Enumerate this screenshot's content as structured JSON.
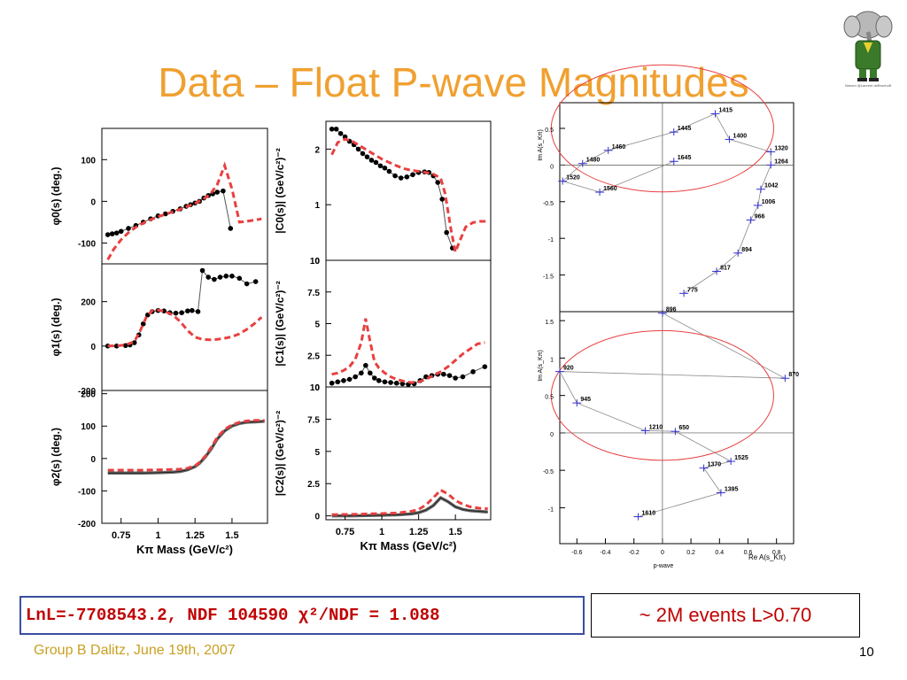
{
  "slide": {
    "title": "Data – Float P-wave Magnitudes",
    "fit_text": "LnL=-7708543.2, NDF 104590 χ²/NDF = 1.088",
    "events_text": "~ 2M events L>0.70",
    "footer": "Group B Dalitz, June 19th, 2007",
    "page_number": "10",
    "logo_caption": "Nimom @Laurent deBrunhoff",
    "colors": {
      "title": "#f0a030",
      "model": "#e84040",
      "data": "#000000",
      "argand_marker": "#3030d0",
      "footer": "#c8a020",
      "box_border": "#3a4fa0",
      "emphasis": "#c00000"
    }
  },
  "chart_data": [
    {
      "type": "scatter",
      "panel": "phi0",
      "ylabel": "φ0(s)  (deg.)",
      "xlim": [
        0.62,
        1.74
      ],
      "ylim": [
        -150,
        175
      ],
      "yticks": [
        -100,
        0,
        100
      ],
      "series": [
        {
          "style": "data",
          "x": [
            0.66,
            0.69,
            0.72,
            0.75,
            0.8,
            0.85,
            0.9,
            0.95,
            1.0,
            1.05,
            1.1,
            1.15,
            1.19,
            1.22,
            1.25,
            1.28,
            1.31,
            1.34,
            1.37,
            1.4,
            1.44,
            1.49
          ],
          "y": [
            -80,
            -78,
            -76,
            -72,
            -65,
            -58,
            -50,
            -42,
            -35,
            -30,
            -24,
            -18,
            -12,
            -8,
            -4,
            0,
            8,
            14,
            18,
            22,
            25,
            -65
          ]
        },
        {
          "style": "model",
          "x": [
            0.66,
            0.7,
            0.75,
            0.8,
            0.85,
            0.9,
            0.95,
            1.0,
            1.05,
            1.1,
            1.15,
            1.2,
            1.25,
            1.3,
            1.35,
            1.4,
            1.45,
            1.5,
            1.55,
            1.6,
            1.65,
            1.7
          ],
          "y": [
            -140,
            -115,
            -92,
            -75,
            -62,
            -52,
            -44,
            -37,
            -31,
            -25,
            -19,
            -12,
            -5,
            4,
            16,
            40,
            86,
            30,
            -50,
            -48,
            -45,
            -42
          ]
        }
      ]
    },
    {
      "type": "scatter",
      "panel": "C0",
      "ylabel": "|C0(s)|  (GeV/c²)⁻²",
      "xlim": [
        0.62,
        1.74
      ],
      "ylim": [
        0,
        2.5
      ],
      "yticks": [
        0,
        1,
        2
      ],
      "series": [
        {
          "style": "data",
          "x": [
            0.66,
            0.69,
            0.72,
            0.75,
            0.78,
            0.81,
            0.84,
            0.87,
            0.9,
            0.93,
            0.96,
            0.99,
            1.02,
            1.05,
            1.09,
            1.13,
            1.17,
            1.21,
            1.25,
            1.29,
            1.32,
            1.35,
            1.38,
            1.41,
            1.44,
            1.48
          ],
          "y": [
            2.36,
            2.36,
            2.28,
            2.22,
            2.14,
            2.08,
            2.0,
            1.92,
            1.86,
            1.8,
            1.76,
            1.7,
            1.66,
            1.6,
            1.52,
            1.48,
            1.5,
            1.54,
            1.58,
            1.59,
            1.58,
            1.52,
            1.4,
            1.1,
            0.5,
            0.22
          ]
        },
        {
          "style": "model",
          "x": [
            0.66,
            0.7,
            0.75,
            0.8,
            0.85,
            0.9,
            0.95,
            1.0,
            1.05,
            1.1,
            1.15,
            1.2,
            1.25,
            1.3,
            1.35,
            1.4,
            1.43,
            1.47,
            1.5,
            1.53,
            1.57,
            1.62,
            1.67,
            1.72
          ],
          "y": [
            1.9,
            2.12,
            2.18,
            2.14,
            2.06,
            1.98,
            1.9,
            1.82,
            1.76,
            1.7,
            1.65,
            1.62,
            1.6,
            1.58,
            1.55,
            1.48,
            1.2,
            0.55,
            0.15,
            0.35,
            0.6,
            0.68,
            0.7,
            0.7
          ]
        }
      ]
    },
    {
      "type": "scatter",
      "panel": "phi1",
      "ylabel": "φ1(s)  (deg.)",
      "xlim": [
        0.62,
        1.74
      ],
      "ylim": [
        -200,
        370
      ],
      "yticks": [
        -200,
        0,
        200
      ],
      "series": [
        {
          "style": "data",
          "x": [
            0.66,
            0.72,
            0.78,
            0.81,
            0.84,
            0.87,
            0.9,
            0.93,
            0.96,
            1.0,
            1.04,
            1.08,
            1.12,
            1.16,
            1.2,
            1.23,
            1.27,
            1.3,
            1.34,
            1.38,
            1.42,
            1.46,
            1.5,
            1.55,
            1.6,
            1.66
          ],
          "y": [
            0,
            0,
            2,
            5,
            15,
            50,
            100,
            140,
            155,
            160,
            158,
            150,
            148,
            150,
            158,
            160,
            155,
            340,
            310,
            300,
            310,
            315,
            315,
            305,
            280,
            290
          ]
        },
        {
          "style": "model",
          "x": [
            0.66,
            0.72,
            0.78,
            0.84,
            0.88,
            0.92,
            0.96,
            1.0,
            1.05,
            1.1,
            1.15,
            1.2,
            1.25,
            1.3,
            1.35,
            1.4,
            1.45,
            1.5,
            1.55,
            1.6,
            1.65,
            1.7
          ],
          "y": [
            0,
            1,
            5,
            20,
            70,
            130,
            160,
            162,
            155,
            140,
            110,
            70,
            40,
            30,
            28,
            30,
            35,
            42,
            55,
            75,
            100,
            130
          ]
        }
      ]
    },
    {
      "type": "scatter",
      "panel": "C1",
      "ylabel": "|C1(s)|  (GeV/c²)⁻²",
      "xlim": [
        0.62,
        1.74
      ],
      "ylim": [
        0,
        10
      ],
      "yticks": [
        0,
        2.5,
        5,
        7.5,
        10
      ],
      "series": [
        {
          "style": "data",
          "x": [
            0.66,
            0.7,
            0.74,
            0.78,
            0.82,
            0.86,
            0.89,
            0.92,
            0.95,
            0.98,
            1.02,
            1.06,
            1.1,
            1.14,
            1.18,
            1.22,
            1.26,
            1.3,
            1.34,
            1.38,
            1.42,
            1.46,
            1.5,
            1.55,
            1.62,
            1.7
          ],
          "y": [
            0.3,
            0.4,
            0.5,
            0.6,
            0.8,
            1.1,
            1.7,
            1.1,
            0.7,
            0.5,
            0.4,
            0.35,
            0.3,
            0.25,
            0.2,
            0.25,
            0.5,
            0.8,
            0.9,
            1.0,
            1.0,
            0.9,
            0.7,
            0.8,
            1.2,
            1.6
          ]
        },
        {
          "style": "model",
          "x": [
            0.66,
            0.7,
            0.74,
            0.78,
            0.82,
            0.86,
            0.89,
            0.92,
            0.95,
            0.98,
            1.02,
            1.06,
            1.1,
            1.15,
            1.2,
            1.25,
            1.3,
            1.35,
            1.4,
            1.45,
            1.5,
            1.55,
            1.6,
            1.65,
            1.7
          ],
          "y": [
            1.0,
            1.1,
            1.3,
            1.6,
            2.2,
            3.5,
            5.4,
            3.6,
            2.0,
            1.5,
            1.1,
            0.8,
            0.6,
            0.45,
            0.35,
            0.4,
            0.6,
            0.9,
            1.2,
            1.6,
            2.1,
            2.6,
            3.0,
            3.4,
            3.5
          ]
        }
      ]
    },
    {
      "type": "line",
      "panel": "phi2",
      "ylabel": "φ2(s)  (deg.)",
      "xlabel": "Kπ Mass (GeV/c²)",
      "xlim": [
        0.62,
        1.74
      ],
      "ylim": [
        -200,
        210
      ],
      "yticks": [
        -200,
        -100,
        0,
        100,
        200
      ],
      "xticks": [
        0.75,
        1,
        1.25,
        1.5
      ],
      "series": [
        {
          "style": "data",
          "x": [
            0.66,
            0.8,
            0.9,
            1.0,
            1.1,
            1.15,
            1.2,
            1.25,
            1.28,
            1.32,
            1.36,
            1.4,
            1.45,
            1.5,
            1.55,
            1.6,
            1.66,
            1.72
          ],
          "y": [
            -45,
            -45,
            -45,
            -44,
            -42,
            -40,
            -35,
            -25,
            -15,
            5,
            30,
            60,
            85,
            100,
            108,
            112,
            113,
            115
          ]
        },
        {
          "style": "model",
          "x": [
            0.66,
            0.8,
            0.9,
            1.0,
            1.1,
            1.15,
            1.2,
            1.25,
            1.28,
            1.32,
            1.36,
            1.4,
            1.45,
            1.5,
            1.55,
            1.6,
            1.66,
            1.72
          ],
          "y": [
            -36,
            -36,
            -36,
            -35,
            -34,
            -33,
            -30,
            -22,
            -12,
            8,
            35,
            65,
            90,
            104,
            112,
            116,
            118,
            118
          ]
        }
      ]
    },
    {
      "type": "line",
      "panel": "C2",
      "ylabel": "|C2(s)|  (GeV/c²)⁻²",
      "xlabel": "Kπ Mass (GeV/c²)",
      "xlim": [
        0.62,
        1.74
      ],
      "ylim": [
        -0.3,
        10
      ],
      "yticks": [
        0,
        2.5,
        5,
        7.5,
        10
      ],
      "xticks": [
        0.75,
        1,
        1.25,
        1.5
      ],
      "series": [
        {
          "style": "data",
          "x": [
            0.66,
            0.8,
            0.9,
            1.0,
            1.1,
            1.2,
            1.25,
            1.3,
            1.35,
            1.4,
            1.45,
            1.5,
            1.55,
            1.6,
            1.66,
            1.72
          ],
          "y": [
            0.0,
            0.0,
            0.02,
            0.05,
            0.08,
            0.15,
            0.25,
            0.45,
            0.8,
            1.4,
            1.1,
            0.7,
            0.5,
            0.4,
            0.35,
            0.3
          ]
        },
        {
          "style": "model",
          "x": [
            0.66,
            0.8,
            0.9,
            1.0,
            1.1,
            1.2,
            1.25,
            1.3,
            1.35,
            1.4,
            1.45,
            1.5,
            1.55,
            1.6,
            1.66,
            1.72
          ],
          "y": [
            0.1,
            0.12,
            0.15,
            0.18,
            0.22,
            0.35,
            0.5,
            0.85,
            1.4,
            2.0,
            1.7,
            1.2,
            0.9,
            0.7,
            0.6,
            0.55
          ]
        }
      ]
    },
    {
      "type": "scatter",
      "panel": "argand_s_wave",
      "ylabel": "Im A(s_Kπ)",
      "xlim": [
        -0.72,
        0.92
      ],
      "ylim": [
        -2.0,
        0.85
      ],
      "xticks": [],
      "yticks": [
        -1.5,
        -1,
        -0.5,
        0,
        0.5
      ],
      "points": [
        {
          "label": "775",
          "x": 0.15,
          "y": -1.75
        },
        {
          "label": "817",
          "x": 0.38,
          "y": -1.45
        },
        {
          "label": "894",
          "x": 0.53,
          "y": -1.2
        },
        {
          "label": "966",
          "x": 0.62,
          "y": -0.75
        },
        {
          "label": "1006",
          "x": 0.67,
          "y": -0.55
        },
        {
          "label": "1042",
          "x": 0.69,
          "y": -0.33
        },
        {
          "label": "1264",
          "x": 0.76,
          "y": 0.0
        },
        {
          "label": "1320",
          "x": 0.76,
          "y": 0.18
        },
        {
          "label": "1400",
          "x": 0.47,
          "y": 0.35
        },
        {
          "label": "1415",
          "x": 0.37,
          "y": 0.7
        },
        {
          "label": "1445",
          "x": 0.08,
          "y": 0.45
        },
        {
          "label": "1460",
          "x": -0.38,
          "y": 0.2
        },
        {
          "label": "1480",
          "x": -0.56,
          "y": 0.02
        },
        {
          "label": "1520",
          "x": -0.7,
          "y": -0.22
        },
        {
          "label": "1560",
          "x": -0.44,
          "y": -0.37
        },
        {
          "label": "1645",
          "x": 0.08,
          "y": 0.05
        }
      ]
    },
    {
      "type": "scatter",
      "panel": "argand_p_wave",
      "ylabel": "Im A(s_Kπ)",
      "xlabel": "Re A(s_Kπ)",
      "caption": "p-wave",
      "xlim": [
        -0.72,
        0.92
      ],
      "ylim": [
        -1.48,
        1.62
      ],
      "xticks": [
        -0.6,
        -0.4,
        -0.2,
        0,
        0.2,
        0.4,
        0.6,
        0.8
      ],
      "yticks": [
        -1,
        -0.5,
        0,
        0.5,
        1,
        1.5
      ],
      "points": [
        {
          "label": "896",
          "x": 0.0,
          "y": 1.6
        },
        {
          "label": "870",
          "x": 0.86,
          "y": 0.73
        },
        {
          "label": "920",
          "x": -0.72,
          "y": 0.82
        },
        {
          "label": "945",
          "x": -0.6,
          "y": 0.4
        },
        {
          "label": "1210",
          "x": -0.12,
          "y": 0.03
        },
        {
          "label": "650",
          "x": 0.09,
          "y": 0.02
        },
        {
          "label": "1525",
          "x": 0.48,
          "y": -0.38
        },
        {
          "label": "1370",
          "x": 0.29,
          "y": -0.47
        },
        {
          "label": "1395",
          "x": 0.41,
          "y": -0.8
        },
        {
          "label": "1610",
          "x": -0.17,
          "y": -1.12
        }
      ]
    }
  ]
}
